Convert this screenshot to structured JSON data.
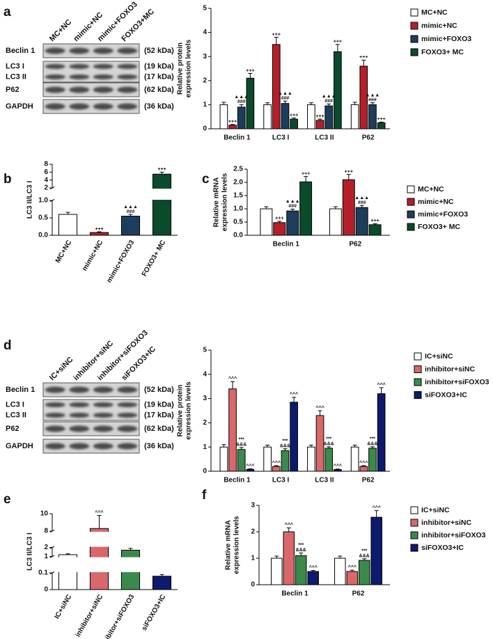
{
  "panel_labels": [
    "a",
    "b",
    "c",
    "d",
    "e",
    "f"
  ],
  "blots": [
    {
      "lanes": [
        "MC+NC",
        "mimic+NC",
        "mimic+FOXO3",
        "FOXO3+MC"
      ],
      "rows": [
        {
          "names": [
            "Beclin 1"
          ],
          "sizes": [
            "(52 kDa)"
          ]
        },
        {
          "names": [
            "LC3 I",
            "LC3 II"
          ],
          "sizes": [
            "(19 kDa)",
            "(17 kDa)"
          ]
        },
        {
          "names": [
            "P62"
          ],
          "sizes": [
            "(62 kDa)"
          ]
        },
        {
          "names": [
            "GAPDH"
          ],
          "sizes": [
            "(36 kDa)"
          ]
        }
      ]
    },
    {
      "lanes": [
        "IC+siNC",
        "inhibitor+siNC",
        "inhibitor+siFOXO3",
        "siFOXO3+IC"
      ],
      "rows": [
        {
          "names": [
            "Beclin 1"
          ],
          "sizes": [
            "(52 kDa)"
          ]
        },
        {
          "names": [
            "LC3 I",
            "LC3 II"
          ],
          "sizes": [
            "(19 kDa)",
            "(17 kDa)"
          ]
        },
        {
          "names": [
            "P62"
          ],
          "sizes": [
            "(62 kDa)"
          ]
        },
        {
          "names": [
            "GAPDH"
          ],
          "sizes": [
            "(36 kDa)"
          ]
        }
      ]
    }
  ],
  "chart_data": [
    {
      "type": "bar",
      "ylabel": [
        "Relative protein",
        "expression  levels"
      ],
      "categories": [
        "Beclin 1",
        "LC3 I",
        "LC3 II",
        "P62"
      ],
      "series": [
        {
          "name": "MC+NC",
          "color": "#ffffff",
          "values": [
            1,
            1,
            1,
            1
          ],
          "errors": [
            0.1,
            0.08,
            0.08,
            0.1
          ]
        },
        {
          "name": "mimic+NC",
          "color": "#b51f2a",
          "values": [
            0.15,
            3.5,
            0.35,
            2.6
          ],
          "errors": [
            0.03,
            0.3,
            0.05,
            0.25
          ],
          "annotation": [
            "+++"
          ]
        },
        {
          "name": "mimic+FOXO3",
          "color": "#1d3d5c",
          "values": [
            0.9,
            1.05,
            0.95,
            1.0
          ],
          "errors": [
            0.1,
            0.1,
            0.08,
            0.08
          ],
          "annotation": [
            "▲▲▲",
            "###"
          ]
        },
        {
          "name": "FOXO3+ MC",
          "color": "#0a4b2b",
          "values": [
            2.1,
            0.4,
            3.2,
            0.25
          ],
          "errors": [
            0.2,
            0.05,
            0.3,
            0.03
          ],
          "annotation": [
            "+++"
          ]
        }
      ],
      "ylim": [
        0,
        5
      ],
      "yticks": [
        0,
        1,
        2,
        3,
        4,
        5
      ],
      "legend": "right"
    },
    {
      "type": "bar",
      "ylabel": [
        "LC3 II/LC3 I"
      ],
      "categories": [
        "MC+NC",
        "mimic+NC",
        "mimic+FOXO3",
        "FOXO3+ MC"
      ],
      "values": [
        0.6,
        0.08,
        0.55,
        5.5
      ],
      "errors": [
        0.06,
        0.02,
        0.05,
        0.5
      ],
      "colors": [
        "#ffffff",
        "#b51f2a",
        "#1d3d5c",
        "#0a4b2b"
      ],
      "annotations": [
        [],
        [
          "+++"
        ],
        [
          "▲▲▲",
          "###"
        ],
        [
          "+++"
        ]
      ],
      "ylim": [
        0,
        8
      ],
      "axis_breaks": [
        [
          1,
          2
        ]
      ],
      "yticks": [
        {
          "value": 0,
          "label": "0.0"
        },
        {
          "value": 0.5,
          "label": "0.5"
        },
        {
          "value": 1,
          "label": "1.0"
        },
        2,
        4,
        6,
        8
      ]
    },
    {
      "type": "bar",
      "ylabel": [
        "Relative mRNA",
        "expression  levels"
      ],
      "categories": [
        "Beclin 1",
        "P62"
      ],
      "series": [
        {
          "name": "MC+NC",
          "color": "#ffffff",
          "values": [
            1.0,
            1.0
          ],
          "errors": [
            0.08,
            0.08
          ]
        },
        {
          "name": "mimic+NC",
          "color": "#b51f2a",
          "values": [
            0.48,
            2.1
          ],
          "errors": [
            0.05,
            0.2
          ],
          "annotation": [
            "+++"
          ]
        },
        {
          "name": "mimic+FOXO3",
          "color": "#1d3d5c",
          "values": [
            0.92,
            1.05
          ],
          "errors": [
            0.07,
            0.08
          ],
          "annotation": [
            "▲▲▲",
            "###"
          ]
        },
        {
          "name": "FOXO3+ MC",
          "color": "#0a4b2b",
          "values": [
            2.02,
            0.4
          ],
          "errors": [
            0.2,
            0.04
          ],
          "annotation": [
            "+++"
          ]
        }
      ],
      "ylim": [
        0,
        2.5
      ],
      "yticks": [
        {
          "value": 0,
          "label": "0.0"
        },
        {
          "value": 0.5,
          "label": "0.5"
        },
        {
          "value": 1,
          "label": "1.0"
        },
        {
          "value": 1.5,
          "label": "1.5"
        },
        {
          "value": 2,
          "label": "2.0"
        },
        {
          "value": 2.5,
          "label": "2.5"
        }
      ],
      "legend": "right"
    },
    {
      "type": "bar",
      "ylabel": [
        "Relative protein",
        "expression  levels"
      ],
      "categories": [
        "Beclin 1",
        "LC3 I",
        "LC3 II",
        "P62"
      ],
      "series": [
        {
          "name": "IC+siNC",
          "color": "#ffffff",
          "values": [
            1,
            1,
            1,
            1
          ],
          "errors": [
            0.1,
            0.08,
            0.08,
            0.08
          ]
        },
        {
          "name": "inhibitor+siNC",
          "color": "#d9686a",
          "values": [
            3.4,
            0.2,
            2.3,
            0.2
          ],
          "errors": [
            0.3,
            0.03,
            0.2,
            0.03
          ],
          "annotation": [
            "^^^"
          ]
        },
        {
          "name": "inhibitor+siFOXO3",
          "color": "#3b8a4b",
          "values": [
            0.9,
            0.85,
            0.95,
            0.95
          ],
          "errors": [
            0.08,
            0.08,
            0.06,
            0.06
          ],
          "annotation": [
            "***",
            "&&&"
          ]
        },
        {
          "name": "siFOXO3+IC",
          "color": "#0e1a6e",
          "values": [
            0.08,
            2.85,
            0.07,
            3.2
          ],
          "errors": [
            0.02,
            0.2,
            0.02,
            0.25
          ],
          "annotation": [
            "^^^"
          ]
        }
      ],
      "ylim": [
        0,
        5
      ],
      "yticks": [
        0,
        1,
        2,
        3,
        4,
        5
      ],
      "legend": "right"
    },
    {
      "type": "bar",
      "ylabel": [
        "LC3 II/LC3 I"
      ],
      "categories": [
        "IC+siNC",
        "inhibitor+siNC",
        "inhibitor+siFOXO3",
        "siFOXO3+IC"
      ],
      "values": [
        1.2,
        8.3,
        1.7,
        0.08
      ],
      "errors": [
        0.1,
        1.5,
        0.2,
        0.01
      ],
      "colors": [
        "#ffffff",
        "#d9686a",
        "#3b8a4b",
        "#0e1a6e"
      ],
      "annotations": [
        [],
        [
          "^^^"
        ],
        [
          "***",
          "&&&"
        ],
        [
          "^^^"
        ]
      ],
      "ylim": [
        0,
        10
      ],
      "axis_breaks": [
        [
          0.1,
          1
        ],
        [
          2,
          8
        ]
      ],
      "yticks": [
        0,
        0.1,
        1,
        2,
        8,
        10
      ]
    },
    {
      "type": "bar",
      "ylabel": [
        "Relative mRNA",
        "expression  levels"
      ],
      "categories": [
        "Beclin 1",
        "P62"
      ],
      "series": [
        {
          "name": "IC+siNC",
          "color": "#ffffff",
          "values": [
            1.0,
            1.0
          ],
          "errors": [
            0.08,
            0.08
          ]
        },
        {
          "name": "inhibitor+siNC",
          "color": "#d9686a",
          "values": [
            2.0,
            0.5
          ],
          "errors": [
            0.15,
            0.05
          ],
          "annotation": [
            "^^^"
          ]
        },
        {
          "name": "inhibitor+siFOXO3",
          "color": "#3b8a4b",
          "values": [
            1.1,
            0.92
          ],
          "errors": [
            0.1,
            0.06
          ],
          "annotation": [
            "***",
            "&&&"
          ]
        },
        {
          "name": "siFOXO3+IC",
          "color": "#0e1a6e",
          "values": [
            0.5,
            2.55
          ],
          "errors": [
            0.04,
            0.25
          ],
          "annotation": [
            "^^^"
          ]
        }
      ],
      "ylim": [
        0,
        3
      ],
      "yticks": [
        0,
        1,
        2,
        3
      ],
      "legend": "right"
    }
  ]
}
